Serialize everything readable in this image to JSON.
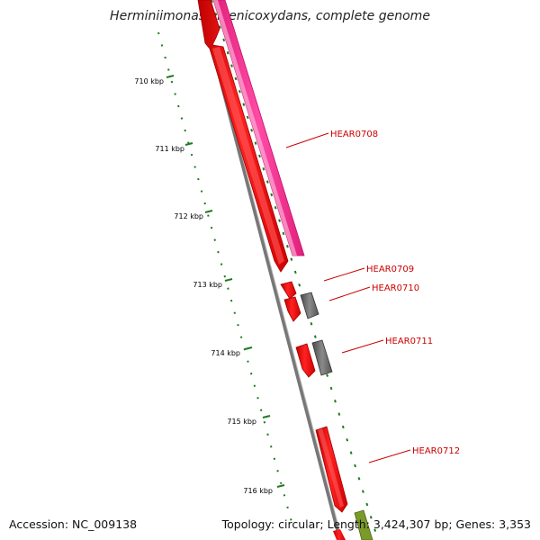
{
  "header": {
    "title": "Herminiimonas arsenicoxydans, complete genome"
  },
  "footer": {
    "accession": "Accession: NC_009138",
    "summary": "Topology: circular; Length: 3,424,307 bp; Genes: 3,353"
  },
  "ruler": {
    "ticks": [
      {
        "kbp": 710,
        "label": "710 kbp"
      },
      {
        "kbp": 711,
        "label": "711 kbp"
      },
      {
        "kbp": 712,
        "label": "712 kbp"
      },
      {
        "kbp": 713,
        "label": "713 kbp"
      },
      {
        "kbp": 714,
        "label": "714 kbp"
      },
      {
        "kbp": 715,
        "label": "715 kbp"
      },
      {
        "kbp": 716,
        "label": "716 kbp"
      }
    ]
  },
  "genes": [
    {
      "id": "HEAR0708",
      "label": "HEAR0708"
    },
    {
      "id": "HEAR0709",
      "label": "HEAR0709"
    },
    {
      "id": "HEAR0710",
      "label": "HEAR0710"
    },
    {
      "id": "HEAR0711",
      "label": "HEAR0711"
    },
    {
      "id": "HEAR0712",
      "label": "HEAR0712"
    }
  ],
  "colors": {
    "cds": "#ff0000",
    "cds_dark": "#b30000",
    "pink": "#ff3399",
    "gray_feature": "#666666",
    "backbone": "#888888",
    "ticks": "#1f7a1f",
    "label": "#cc0000",
    "olive": "#7a9a2a"
  }
}
